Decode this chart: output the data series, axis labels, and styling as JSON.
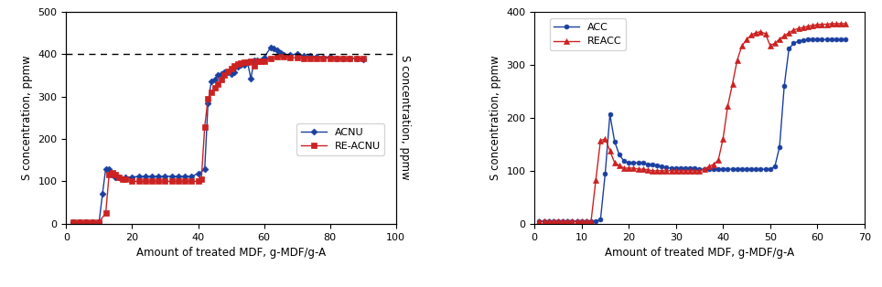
{
  "chart1": {
    "xlabel": "Amount of treated MDF, g-MDF/g-A",
    "ylabel": "S concentration, ppmw",
    "xlim": [
      0,
      100
    ],
    "ylim": [
      0,
      500
    ],
    "xticks": [
      0,
      20,
      40,
      60,
      80,
      100
    ],
    "yticks": [
      0,
      100,
      200,
      300,
      400,
      500
    ],
    "dashed_line_y": 400,
    "acnu_color": "#1a3fa0",
    "reacnu_color": "#cc2222",
    "acnu_x": [
      2,
      4,
      6,
      8,
      10,
      11,
      12,
      13,
      14,
      15,
      16,
      18,
      20,
      22,
      24,
      26,
      28,
      30,
      32,
      34,
      36,
      38,
      40,
      42,
      43,
      44,
      45,
      46,
      47,
      48,
      49,
      50,
      51,
      52,
      53,
      54,
      55,
      56,
      57,
      58,
      60,
      62,
      63,
      64,
      65,
      66,
      68,
      70,
      72,
      74,
      76,
      78,
      80,
      82,
      84,
      86,
      88,
      90
    ],
    "acnu_y": [
      5,
      5,
      5,
      5,
      5,
      70,
      130,
      130,
      115,
      110,
      110,
      110,
      110,
      112,
      112,
      112,
      112,
      112,
      112,
      112,
      112,
      112,
      118,
      128,
      283,
      335,
      340,
      350,
      352,
      356,
      356,
      352,
      358,
      370,
      375,
      375,
      380,
      342,
      385,
      385,
      392,
      415,
      412,
      408,
      402,
      398,
      398,
      400,
      395,
      395,
      393,
      392,
      393,
      390,
      390,
      390,
      390,
      388
    ],
    "reacnu_x": [
      2,
      4,
      6,
      8,
      10,
      12,
      13,
      14,
      15,
      16,
      17,
      18,
      20,
      22,
      24,
      26,
      28,
      30,
      32,
      34,
      36,
      38,
      40,
      41,
      42,
      43,
      44,
      45,
      46,
      47,
      48,
      49,
      50,
      51,
      52,
      53,
      54,
      55,
      56,
      57,
      58,
      59,
      60,
      62,
      64,
      66,
      68,
      70,
      72,
      74,
      76,
      78,
      80,
      82,
      84,
      86,
      88,
      90
    ],
    "reacnu_y": [
      5,
      5,
      5,
      5,
      5,
      25,
      115,
      120,
      115,
      110,
      105,
      105,
      100,
      100,
      100,
      100,
      100,
      100,
      100,
      100,
      100,
      100,
      100,
      105,
      228,
      295,
      310,
      320,
      330,
      340,
      350,
      360,
      366,
      372,
      376,
      378,
      380,
      380,
      383,
      372,
      382,
      382,
      383,
      390,
      393,
      393,
      392,
      391,
      390,
      390,
      390,
      390,
      390,
      390,
      390,
      390,
      390,
      390
    ]
  },
  "chart2": {
    "xlabel": "Amount of treated MDF, g-MDF/g-A",
    "ylabel": "S concentration, ppmw",
    "xlim": [
      0,
      70
    ],
    "ylim": [
      0,
      400
    ],
    "xticks": [
      0,
      10,
      20,
      30,
      40,
      50,
      60,
      70
    ],
    "yticks": [
      0,
      100,
      200,
      300,
      400
    ],
    "acc_color": "#1a3fa0",
    "reacc_color": "#cc2222",
    "acc_x": [
      1,
      2,
      3,
      4,
      5,
      6,
      7,
      8,
      9,
      10,
      11,
      12,
      13,
      14,
      15,
      16,
      17,
      18,
      19,
      20,
      21,
      22,
      23,
      24,
      25,
      26,
      27,
      28,
      29,
      30,
      31,
      32,
      33,
      34,
      35,
      36,
      37,
      38,
      39,
      40,
      41,
      42,
      43,
      44,
      45,
      46,
      47,
      48,
      49,
      50,
      51,
      52,
      53,
      54,
      55,
      56,
      57,
      58,
      59,
      60,
      61,
      62,
      63,
      64,
      65,
      66
    ],
    "acc_y": [
      5,
      5,
      5,
      5,
      5,
      5,
      5,
      5,
      5,
      5,
      5,
      5,
      5,
      8,
      95,
      206,
      155,
      130,
      118,
      115,
      115,
      115,
      115,
      112,
      112,
      110,
      108,
      106,
      105,
      105,
      105,
      105,
      105,
      105,
      103,
      103,
      103,
      103,
      103,
      103,
      103,
      103,
      103,
      103,
      103,
      103,
      103,
      103,
      103,
      103,
      108,
      145,
      260,
      330,
      340,
      344,
      346,
      347,
      347,
      347,
      347,
      347,
      347,
      347,
      347,
      347
    ],
    "reacc_x": [
      1,
      2,
      3,
      4,
      5,
      6,
      7,
      8,
      9,
      10,
      11,
      12,
      13,
      14,
      15,
      16,
      17,
      18,
      19,
      20,
      21,
      22,
      23,
      24,
      25,
      26,
      27,
      28,
      29,
      30,
      31,
      32,
      33,
      34,
      35,
      36,
      37,
      38,
      39,
      40,
      41,
      42,
      43,
      44,
      45,
      46,
      47,
      48,
      49,
      50,
      51,
      52,
      53,
      54,
      55,
      56,
      57,
      58,
      59,
      60,
      61,
      62,
      63,
      64,
      65,
      66
    ],
    "reacc_y": [
      5,
      5,
      5,
      5,
      5,
      5,
      5,
      5,
      5,
      5,
      5,
      5,
      82,
      157,
      160,
      138,
      115,
      110,
      105,
      105,
      105,
      103,
      103,
      102,
      100,
      100,
      100,
      100,
      100,
      100,
      100,
      100,
      100,
      100,
      100,
      103,
      108,
      112,
      120,
      160,
      222,
      263,
      308,
      335,
      347,
      356,
      360,
      362,
      358,
      336,
      340,
      348,
      354,
      360,
      365,
      368,
      370,
      372,
      374,
      375,
      376,
      376,
      377,
      377,
      377,
      377
    ]
  }
}
